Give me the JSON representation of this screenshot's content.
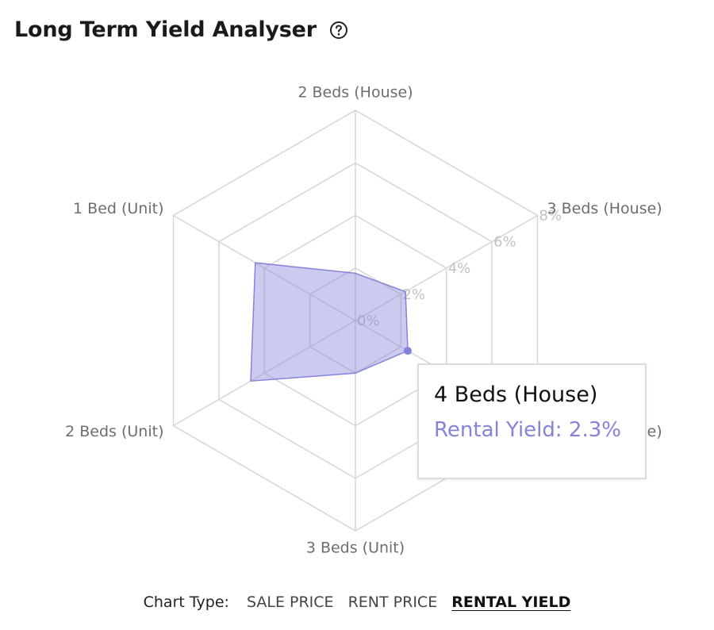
{
  "header": {
    "title": "Long Term Yield Analyser",
    "help_icon": "help-circle-icon"
  },
  "chart_data": {
    "type": "radar",
    "axes": [
      "2 Beds (House)",
      "3 Beds (House)",
      "4 Beds (House)",
      "3 Beds (Unit)",
      "2 Beds (Unit)",
      "1 Bed (Unit)"
    ],
    "series": [
      {
        "values": [
          1.8,
          2.2,
          2.3,
          2.0,
          4.6,
          4.4
        ],
        "color": "#8583d8"
      }
    ],
    "ticks": [
      "0%",
      "2%",
      "4%",
      "6%",
      "8%"
    ],
    "rmax": 8,
    "grid": true
  },
  "tooltip": {
    "title": "4 Beds (House)",
    "value_text": "Rental Yield: 2.3%"
  },
  "footer": {
    "label": "Chart Type:",
    "options": [
      "SALE PRICE",
      "RENT PRICE",
      "RENTAL YIELD"
    ],
    "active_index": 2
  }
}
